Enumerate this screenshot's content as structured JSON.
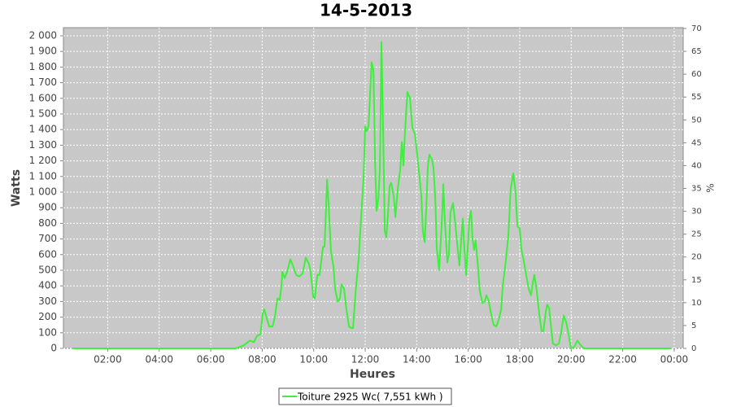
{
  "chart_data": {
    "type": "line",
    "title": "14-5-2013",
    "x_label": "Heures",
    "y_label": "Watts",
    "y2_label": "%",
    "xlim": [
      0.28,
      24.35
    ],
    "xticks": [
      {
        "value": 2,
        "label": "02:00"
      },
      {
        "value": 4,
        "label": "04:00"
      },
      {
        "value": 6,
        "label": "06:00"
      },
      {
        "value": 8,
        "label": "08:00"
      },
      {
        "value": 10,
        "label": "10:00"
      },
      {
        "value": 12,
        "label": "12:00"
      },
      {
        "value": 14,
        "label": "14:00"
      },
      {
        "value": 16,
        "label": "16:00"
      },
      {
        "value": 18,
        "label": "18:00"
      },
      {
        "value": 20,
        "label": "20:00"
      },
      {
        "value": 22,
        "label": "22:00"
      },
      {
        "value": 24,
        "label": "00:00"
      }
    ],
    "ylim": [
      0,
      2052
    ],
    "yticks": [
      0,
      100,
      200,
      300,
      400,
      500,
      600,
      700,
      800,
      900,
      {
        "value": 1000,
        "label": "1 000"
      },
      {
        "value": 1100,
        "label": "1 100"
      },
      {
        "value": 1200,
        "label": "1 200"
      },
      {
        "value": 1300,
        "label": "1 300"
      },
      {
        "value": 1400,
        "label": "1 400"
      },
      {
        "value": 1500,
        "label": "1 500"
      },
      {
        "value": 1600,
        "label": "1 600"
      },
      {
        "value": 1700,
        "label": "1 700"
      },
      {
        "value": 1800,
        "label": "1 800"
      },
      {
        "value": 1900,
        "label": "1 900"
      },
      {
        "value": 2000,
        "label": "2 000"
      }
    ],
    "y2lim": [
      0,
      70.18
    ],
    "y2ticks": [
      0,
      5,
      10,
      15,
      20,
      25,
      30,
      35,
      40,
      45,
      50,
      55,
      60,
      65,
      70
    ],
    "grid": true,
    "legend": "bottom",
    "x": [
      0.66,
      6.98,
      7.29,
      7.52,
      7.67,
      7.8,
      7.93,
      8.02,
      8.08,
      8.18,
      8.27,
      8.4,
      8.49,
      8.59,
      8.68,
      8.75,
      8.78,
      8.87,
      8.97,
      9.09,
      9.19,
      9.32,
      9.44,
      9.57,
      9.69,
      9.82,
      9.88,
      9.98,
      10.04,
      10.14,
      10.23,
      10.36,
      10.42,
      10.52,
      10.58,
      10.67,
      10.77,
      10.83,
      10.93,
      11.02,
      11.08,
      11.18,
      11.27,
      11.37,
      11.46,
      11.53,
      11.62,
      11.75,
      11.84,
      11.94,
      12.0,
      12.06,
      12.13,
      12.19,
      12.25,
      12.32,
      12.38,
      12.44,
      12.51,
      12.57,
      12.63,
      12.69,
      12.76,
      12.82,
      12.88,
      12.95,
      13.01,
      13.11,
      13.17,
      13.26,
      13.36,
      13.42,
      13.48,
      13.55,
      13.64,
      13.74,
      13.83,
      13.93,
      14.02,
      14.12,
      14.18,
      14.24,
      14.31,
      14.37,
      14.43,
      14.49,
      14.59,
      14.65,
      14.72,
      14.78,
      14.87,
      14.97,
      15.03,
      15.09,
      15.19,
      15.25,
      15.31,
      15.41,
      15.51,
      15.6,
      15.66,
      15.73,
      15.79,
      15.85,
      15.92,
      15.98,
      16.04,
      16.11,
      16.17,
      16.23,
      16.29,
      16.36,
      16.45,
      16.55,
      16.64,
      16.71,
      16.8,
      16.9,
      16.99,
      17.09,
      17.18,
      17.28,
      17.34,
      17.46,
      17.56,
      17.65,
      17.75,
      17.84,
      17.91,
      18.0,
      18.06,
      18.16,
      18.25,
      18.35,
      18.44,
      18.51,
      18.57,
      18.66,
      18.76,
      18.85,
      18.92,
      19.01,
      19.07,
      19.14,
      19.23,
      19.29,
      19.42,
      19.52,
      19.61,
      19.71,
      19.8,
      19.9,
      19.99,
      20.12,
      20.24,
      20.37,
      20.5,
      23.87
    ],
    "series": [
      {
        "name": "Toiture 2925 Wc( 7,551 kWh )",
        "color": "#3cf03c",
        "values": [
          0,
          0,
          20,
          50,
          40,
          80,
          90,
          220,
          250,
          190,
          140,
          140,
          200,
          320,
          310,
          400,
          490,
          450,
          490,
          570,
          530,
          470,
          460,
          480,
          580,
          540,
          490,
          330,
          320,
          470,
          470,
          650,
          650,
          1080,
          920,
          620,
          520,
          380,
          300,
          320,
          410,
          380,
          250,
          140,
          130,
          130,
          350,
          580,
          840,
          1100,
          1420,
          1390,
          1420,
          1620,
          1830,
          1780,
          1200,
          880,
          960,
          1150,
          1960,
          1440,
          750,
          710,
          850,
          1040,
          1060,
          970,
          840,
          1010,
          1150,
          1320,
          1170,
          1400,
          1640,
          1600,
          1410,
          1370,
          1240,
          1080,
          980,
          750,
          680,
          900,
          1160,
          1240,
          1210,
          1160,
          970,
          640,
          500,
          800,
          1050,
          820,
          550,
          600,
          870,
          930,
          780,
          620,
          530,
          700,
          830,
          640,
          470,
          630,
          820,
          880,
          700,
          630,
          690,
          560,
          370,
          290,
          300,
          340,
          300,
          210,
          150,
          140,
          180,
          250,
          400,
          560,
          720,
          1020,
          1120,
          1000,
          780,
          770,
          640,
          560,
          470,
          380,
          340,
          420,
          470,
          370,
          220,
          110,
          110,
          230,
          280,
          260,
          120,
          30,
          20,
          30,
          100,
          210,
          170,
          90,
          0,
          10,
          50,
          20,
          0,
          0
        ]
      }
    ]
  }
}
